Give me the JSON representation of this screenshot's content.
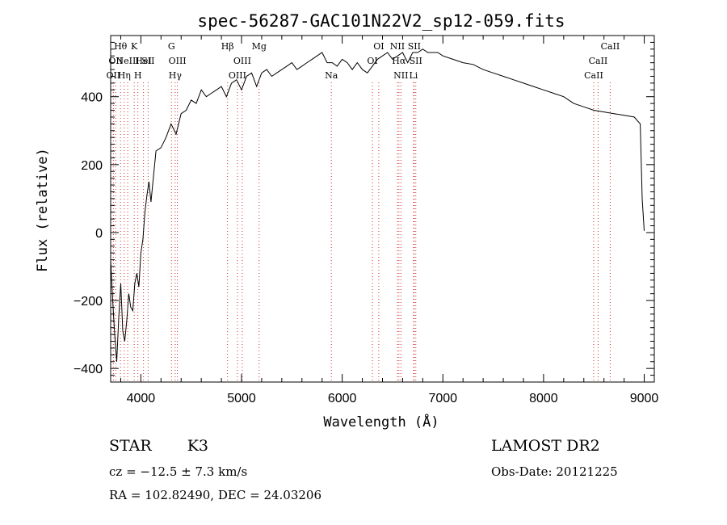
{
  "chart_data": {
    "type": "line",
    "title": "spec-56287-GAC101N22V2_sp12-059.fits",
    "xlabel": "Wavelength (Å)",
    "ylabel": "Flux (relative)",
    "xlim": [
      3700,
      9100
    ],
    "ylim": [
      -440,
      580
    ],
    "xticks": [
      4000,
      5000,
      6000,
      7000,
      8000,
      9000
    ],
    "yticks": [
      -400,
      -200,
      0,
      200,
      400
    ],
    "series": [
      {
        "x": [
          3700,
          3720,
          3740,
          3760,
          3780,
          3800,
          3820,
          3840,
          3860,
          3880,
          3900,
          3920,
          3940,
          3960,
          3980,
          4000,
          4020,
          4040,
          4060,
          4080,
          4100,
          4150,
          4200,
          4250,
          4300,
          4350,
          4400,
          4450,
          4500,
          4550,
          4600,
          4650,
          4700,
          4750,
          4800,
          4850,
          4900,
          4950,
          5000,
          5050,
          5100,
          5150,
          5200,
          5250,
          5300,
          5350,
          5400,
          5450,
          5500,
          5550,
          5600,
          5650,
          5700,
          5750,
          5800,
          5850,
          5900,
          5950,
          6000,
          6050,
          6100,
          6150,
          6200,
          6250,
          6300,
          6350,
          6400,
          6450,
          6500,
          6550,
          6600,
          6650,
          6700,
          6750,
          6800,
          6850,
          6900,
          6950,
          7000,
          7100,
          7200,
          7300,
          7400,
          7500,
          7600,
          7700,
          7800,
          7900,
          8000,
          8100,
          8200,
          8300,
          8400,
          8500,
          8600,
          8700,
          8800,
          8900,
          8960,
          8980,
          9000
        ],
        "y": [
          -80,
          -200,
          -300,
          -380,
          -250,
          -150,
          -290,
          -320,
          -260,
          -180,
          -220,
          -230,
          -150,
          -120,
          -160,
          -60,
          -20,
          60,
          110,
          150,
          90,
          240,
          250,
          280,
          320,
          290,
          350,
          360,
          390,
          380,
          420,
          400,
          410,
          420,
          430,
          400,
          440,
          450,
          420,
          460,
          470,
          430,
          470,
          480,
          460,
          470,
          480,
          490,
          500,
          480,
          490,
          500,
          510,
          520,
          530,
          500,
          500,
          490,
          510,
          500,
          480,
          500,
          480,
          470,
          490,
          510,
          520,
          530,
          510,
          520,
          530,
          500,
          530,
          530,
          540,
          530,
          530,
          530,
          520,
          510,
          500,
          495,
          480,
          470,
          460,
          450,
          440,
          430,
          420,
          410,
          400,
          380,
          370,
          360,
          355,
          350,
          345,
          340,
          320,
          100,
          5
        ]
      }
    ],
    "lines": [
      {
        "x": 3727,
        "label": "OII",
        "row": 2
      },
      {
        "x": 3750,
        "label": "OII",
        "row": 1
      },
      {
        "x": 3798,
        "label": "Hθ",
        "row": 0
      },
      {
        "x": 3835,
        "label": "Hη",
        "row": 2
      },
      {
        "x": 3869,
        "label": "NeIII",
        "row": 1
      },
      {
        "x": 3934,
        "label": "K",
        "row": 0
      },
      {
        "x": 3970,
        "label": "H",
        "row": 2
      },
      {
        "x": 4026,
        "label": "HeI",
        "row": 1
      },
      {
        "x": 4072,
        "label": "SII",
        "row": 1
      },
      {
        "x": 4304,
        "label": "G",
        "row": 0
      },
      {
        "x": 4341,
        "label": "Hγ",
        "row": 2
      },
      {
        "x": 4363,
        "label": "OIII",
        "row": 1
      },
      {
        "x": 4861,
        "label": "Hβ",
        "row": 0
      },
      {
        "x": 4959,
        "label": "OIII",
        "row": 2
      },
      {
        "x": 5007,
        "label": "OIII",
        "row": 1
      },
      {
        "x": 5175,
        "label": "Mg",
        "row": 0
      },
      {
        "x": 5892,
        "label": "Na",
        "row": 2
      },
      {
        "x": 6300,
        "label": "OI",
        "row": 1
      },
      {
        "x": 6363,
        "label": "OI",
        "row": 0
      },
      {
        "x": 6548,
        "label": "NII",
        "row": 0
      },
      {
        "x": 6563,
        "label": "Hα",
        "row": 1
      },
      {
        "x": 6583,
        "label": "NII",
        "row": 2
      },
      {
        "x": 6716,
        "label": "SII",
        "row": 0
      },
      {
        "x": 6708,
        "label": "Li",
        "row": 2
      },
      {
        "x": 6731,
        "label": "SII",
        "row": 1
      },
      {
        "x": 8498,
        "label": "CaII",
        "row": 2
      },
      {
        "x": 8542,
        "label": "CaII",
        "row": 1
      },
      {
        "x": 8662,
        "label": "CaII",
        "row": 0
      }
    ]
  },
  "info": {
    "class_label": "STAR",
    "subclass": "K3",
    "cz": "cz = −12.5 ± 7.3 km/s",
    "radec": "RA = 102.82490, DEC =  24.03206",
    "survey": "LAMOST DR2",
    "obsdate": "Obs-Date: 20121225"
  }
}
